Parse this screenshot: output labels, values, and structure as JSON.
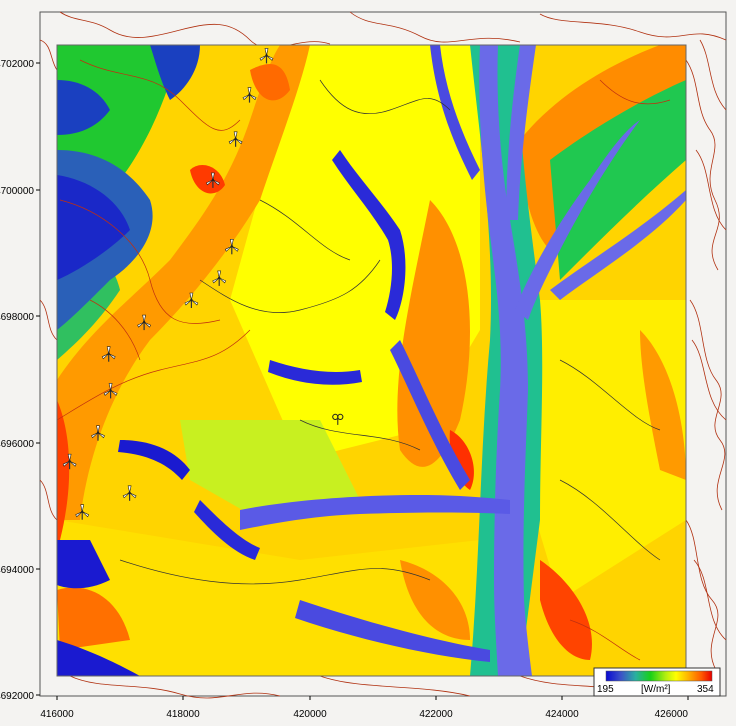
{
  "map": {
    "x_axis": {
      "min": 416000,
      "max": 426000,
      "ticks": [
        "416000",
        "418000",
        "420000",
        "422000",
        "424000",
        "426000"
      ]
    },
    "y_axis": {
      "min": 4692000,
      "max": 4702000,
      "ticks": [
        "4702000",
        "4700000",
        "4698000",
        "4696000",
        "4694000",
        "4692000"
      ]
    },
    "raster_extent": {
      "x": [
        416000,
        426000
      ],
      "y": [
        4692300,
        4702300
      ]
    },
    "turbines": [
      [
        419320,
        4702120
      ],
      [
        419050,
        4701500
      ],
      [
        418830,
        4700800
      ],
      [
        418470,
        4700150
      ],
      [
        418770,
        4699100
      ],
      [
        418570,
        4698600
      ],
      [
        418130,
        4698250
      ],
      [
        417380,
        4697900
      ],
      [
        416820,
        4697400
      ],
      [
        416850,
        4696820
      ],
      [
        416650,
        4696150
      ],
      [
        416200,
        4695700
      ],
      [
        417150,
        4695200
      ],
      [
        416400,
        4694900
      ]
    ],
    "met_mast": [
      420450,
      4696400
    ],
    "legend": {
      "min_label": "195",
      "max_label": "354",
      "unit_label": "[W/m²]",
      "colors": [
        "#0a0ad2",
        "#3c52c8",
        "#2ab0a0",
        "#18d018",
        "#b0ee10",
        "#ffff00",
        "#ffb000",
        "#ff5a00",
        "#e80000"
      ]
    }
  }
}
